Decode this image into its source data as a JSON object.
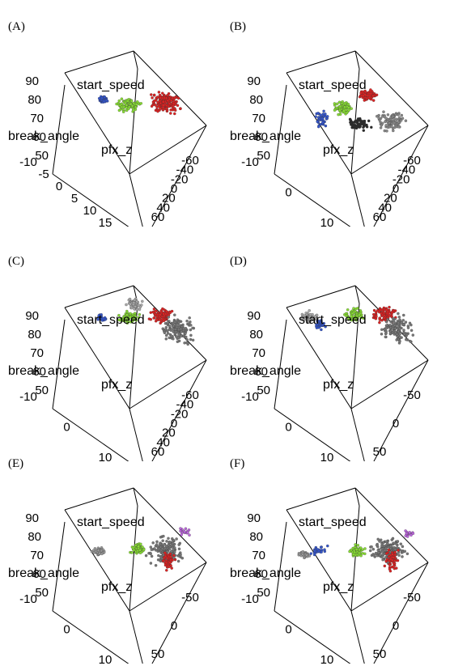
{
  "chart_data": [
    {
      "type": "scatter3d",
      "label": "(A)",
      "axes": {
        "start_speed": {
          "label": "start_speed",
          "ticks": [
            "90",
            "80",
            "70",
            "60",
            "50"
          ]
        },
        "break_angle": {
          "label": "break_angle",
          "ticks": [
            "-10",
            "-5",
            "0",
            "5",
            "10",
            "15"
          ]
        },
        "pfx_z": {
          "label": "pfx_z",
          "ticks": [
            "-60",
            "-40",
            "-20",
            "0",
            "20",
            "40",
            "60"
          ]
        }
      },
      "clusters": [
        {
          "color": "#3355cc",
          "count": 40
        },
        {
          "color": "#88dd33",
          "count": 90
        },
        {
          "color": "#dd2222",
          "count": 180
        }
      ]
    },
    {
      "type": "scatter3d",
      "label": "(B)",
      "axes": {
        "start_speed": {
          "label": "start_speed",
          "ticks": [
            "90",
            "80",
            "70",
            "60",
            "50"
          ]
        },
        "break_angle": {
          "label": "break_angle",
          "ticks": [
            "-10",
            "0",
            "10"
          ]
        },
        "pfx_z": {
          "label": "pfx_z",
          "ticks": [
            "-60",
            "-40",
            "-20",
            "0",
            "20",
            "40",
            "60"
          ]
        }
      },
      "clusters": [
        {
          "color": "#3355cc",
          "count": 40
        },
        {
          "color": "#88dd33",
          "count": 70
        },
        {
          "color": "#2a2a2a",
          "count": 60
        },
        {
          "color": "#dd2222",
          "count": 80
        },
        {
          "color": "#888888",
          "count": 90
        }
      ]
    },
    {
      "type": "scatter3d",
      "label": "(C)",
      "axes": {
        "start_speed": {
          "label": "start_speed",
          "ticks": [
            "90",
            "80",
            "70",
            "60",
            "50"
          ]
        },
        "break_angle": {
          "label": "break_angle",
          "ticks": [
            "-10",
            "0",
            "10"
          ]
        },
        "pfx_z": {
          "label": "pfx_z",
          "ticks": [
            "-60",
            "-40",
            "-20",
            "0",
            "20",
            "40",
            "60"
          ]
        }
      },
      "clusters": [
        {
          "color": "#aaaaaa",
          "count": 60
        },
        {
          "color": "#3355cc",
          "count": 30
        },
        {
          "color": "#88dd33",
          "count": 60
        },
        {
          "color": "#dd2222",
          "count": 90
        },
        {
          "color": "#777777",
          "count": 120
        }
      ]
    },
    {
      "type": "scatter3d",
      "label": "(D)",
      "axes": {
        "start_speed": {
          "label": "start_speed",
          "ticks": [
            "90",
            "80",
            "70",
            "60",
            "50"
          ]
        },
        "break_angle": {
          "label": "break_angle",
          "ticks": [
            "-10",
            "0",
            "10"
          ]
        },
        "pfx_z": {
          "label": "pfx_z",
          "ticks": [
            "-50",
            "0",
            "50"
          ]
        }
      },
      "clusters": [
        {
          "color": "#aaaaaa",
          "count": 50
        },
        {
          "color": "#3355cc",
          "count": 30
        },
        {
          "color": "#88dd33",
          "count": 60
        },
        {
          "color": "#dd2222",
          "count": 90
        },
        {
          "color": "#777777",
          "count": 130
        }
      ]
    },
    {
      "type": "scatter3d",
      "label": "(E)",
      "axes": {
        "start_speed": {
          "label": "start_speed",
          "ticks": [
            "90",
            "80",
            "70",
            "60",
            "50"
          ]
        },
        "break_angle": {
          "label": "break_angle",
          "ticks": [
            "-10",
            "0",
            "10"
          ]
        },
        "pfx_z": {
          "label": "pfx_z",
          "ticks": [
            "-50",
            "0",
            "50"
          ]
        }
      },
      "clusters": [
        {
          "color": "#999999",
          "count": 50
        },
        {
          "color": "#88dd33",
          "count": 60
        },
        {
          "color": "#777777",
          "count": 150
        },
        {
          "color": "#dd2222",
          "count": 50
        },
        {
          "color": "#bb66dd",
          "count": 15
        }
      ]
    },
    {
      "type": "scatter3d",
      "label": "(F)",
      "axes": {
        "start_speed": {
          "label": "start_speed",
          "ticks": [
            "90",
            "80",
            "70",
            "60",
            "50"
          ]
        },
        "break_angle": {
          "label": "break_angle",
          "ticks": [
            "-10",
            "0",
            "10"
          ]
        },
        "pfx_z": {
          "label": "pfx_z",
          "ticks": [
            "-50",
            "0",
            "50"
          ]
        }
      },
      "clusters": [
        {
          "color": "#3355cc",
          "count": 30
        },
        {
          "color": "#999999",
          "count": 40
        },
        {
          "color": "#88dd33",
          "count": 50
        },
        {
          "color": "#777777",
          "count": 150
        },
        {
          "color": "#dd2222",
          "count": 50
        },
        {
          "color": "#bb66dd",
          "count": 15
        }
      ]
    }
  ]
}
